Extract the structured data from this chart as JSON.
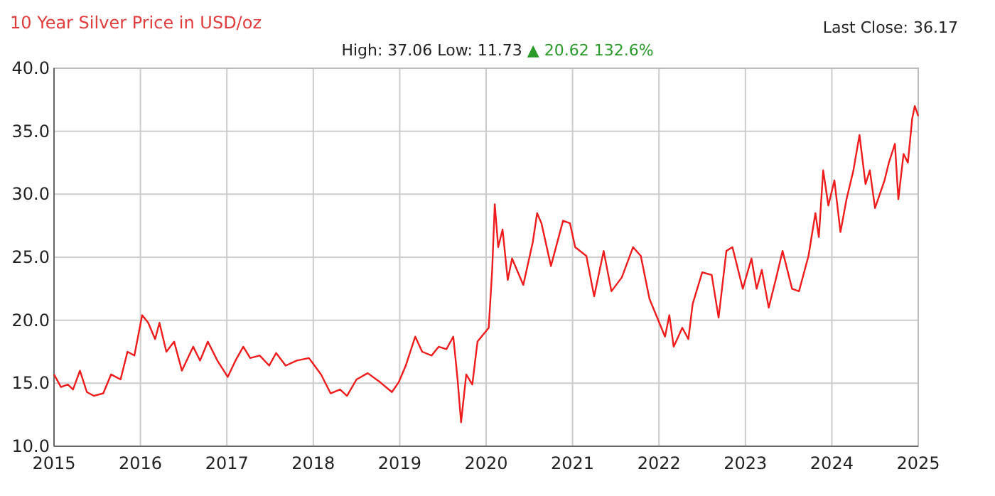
{
  "chart_data": {
    "type": "line",
    "title": "10 Year Silver Price in USD/oz",
    "annotations": [
      "Last Close: 36.17",
      "High: 37.06 Low: 11.73",
      "▲ 20.62 132.6%"
    ],
    "x": [
      2015.0,
      2015.08,
      2015.16,
      2015.22,
      2015.3,
      2015.38,
      2015.46,
      2015.57,
      2015.66,
      2015.77,
      2015.85,
      2015.93,
      2016.02,
      2016.09,
      2016.17,
      2016.22,
      2016.3,
      2016.39,
      2016.48,
      2016.61,
      2016.69,
      2016.78,
      2016.89,
      2017.01,
      2017.1,
      2017.19,
      2017.27,
      2017.38,
      2017.49,
      2017.57,
      2017.68,
      2017.81,
      2017.95,
      2018.09,
      2018.2,
      2018.31,
      2018.39,
      2018.5,
      2018.63,
      2018.77,
      2018.91,
      2018.99,
      2019.07,
      2019.18,
      2019.26,
      2019.37,
      2019.45,
      2019.54,
      2019.62,
      2019.67,
      2019.71,
      2019.77,
      2019.84,
      2019.9,
      2020.03,
      2020.07,
      2020.1,
      2020.14,
      2020.19,
      2020.25,
      2020.3,
      2020.43,
      2020.54,
      2020.59,
      2020.64,
      2020.75,
      2020.89,
      2020.97,
      2021.03,
      2021.16,
      2021.25,
      2021.36,
      2021.45,
      2021.57,
      2021.7,
      2021.79,
      2021.89,
      2022.07,
      2022.12,
      2022.17,
      2022.27,
      2022.34,
      2022.39,
      2022.5,
      2022.61,
      2022.69,
      2022.78,
      2022.85,
      2022.97,
      2023.07,
      2023.13,
      2023.19,
      2023.27,
      2023.35,
      2023.43,
      2023.54,
      2023.62,
      2023.73,
      2023.81,
      2023.85,
      2023.9,
      2023.96,
      2024.03,
      2024.1,
      2024.17,
      2024.25,
      2024.32,
      2024.39,
      2024.44,
      2024.5,
      2024.61,
      2024.66,
      2024.73,
      2024.77,
      2024.83,
      2024.88,
      2024.93,
      2024.96,
      2025.0
    ],
    "series": [
      {
        "color": "#ee1c1c",
        "values": [
          15.7,
          14.7,
          14.9,
          14.5,
          16.0,
          14.3,
          14.0,
          14.2,
          15.7,
          15.3,
          17.5,
          17.2,
          20.4,
          19.8,
          18.5,
          19.8,
          17.5,
          18.3,
          16.0,
          17.9,
          16.8,
          18.3,
          16.8,
          15.5,
          16.8,
          17.9,
          17.0,
          17.2,
          16.4,
          17.4,
          16.4,
          16.8,
          17.0,
          15.7,
          14.2,
          14.5,
          14.0,
          15.3,
          15.8,
          15.1,
          14.3,
          15.1,
          16.4,
          18.7,
          17.5,
          17.2,
          17.9,
          17.7,
          18.7,
          15.3,
          11.9,
          15.7,
          14.9,
          18.3,
          19.4,
          24.0,
          29.2,
          25.8,
          27.2,
          23.2,
          24.9,
          22.8,
          26.2,
          28.5,
          27.7,
          24.3,
          27.9,
          27.7,
          25.8,
          25.1,
          21.9,
          25.5,
          22.3,
          23.4,
          25.8,
          25.1,
          21.7,
          18.7,
          20.4,
          17.9,
          19.4,
          18.5,
          21.3,
          23.8,
          23.6,
          20.2,
          25.5,
          25.8,
          22.5,
          24.9,
          22.5,
          24.0,
          21.0,
          23.2,
          25.5,
          22.5,
          22.3,
          25.1,
          28.5,
          26.6,
          31.9,
          29.1,
          31.1,
          27.0,
          29.6,
          31.9,
          34.7,
          30.8,
          31.9,
          28.9,
          31.1,
          32.5,
          34.0,
          29.6,
          33.2,
          32.5,
          36.0,
          37.0,
          36.2
        ]
      }
    ],
    "xlim": [
      2015,
      2025
    ],
    "xticks": [
      2015,
      2016,
      2017,
      2018,
      2019,
      2020,
      2021,
      2022,
      2023,
      2024,
      2025
    ],
    "ylim": [
      10,
      40
    ],
    "yticks": [
      {
        "value": 10,
        "label": "10.0"
      },
      {
        "value": 15,
        "label": "15.0"
      },
      {
        "value": 20,
        "label": "20.0"
      },
      {
        "value": 25,
        "label": "25.0"
      },
      {
        "value": 30,
        "label": "30.0"
      },
      {
        "value": 35,
        "label": "35.0"
      },
      {
        "value": 40,
        "label": "40.0"
      }
    ],
    "grid": true
  }
}
